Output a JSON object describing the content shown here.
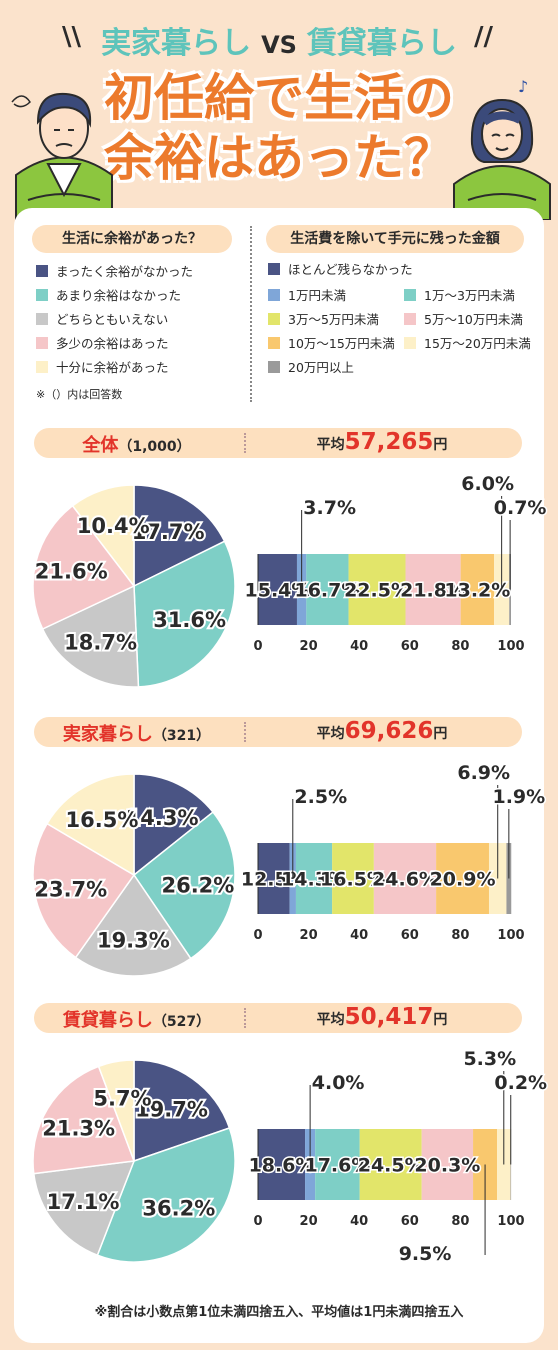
{
  "header": {
    "left_title": "実家暮らし",
    "vs": "VS",
    "right_title": "賃貸暮らし",
    "main_title_1": "初任給で生活の",
    "main_title_2": "余裕はあった？"
  },
  "legend_left": {
    "heading": "生活に余裕があった？",
    "items": [
      "まったく余裕がなかった",
      "あまり余裕はなかった",
      "どちらともいえない",
      "多少の余裕はあった",
      "十分に余裕があった"
    ],
    "note": "※（）内は回答数"
  },
  "legend_right": {
    "heading": "生活費を除いて手元に残った金額",
    "items": [
      "ほとんど残らなかった",
      "1万円未満",
      "1万〜3万円未満",
      "3万〜5万円未満",
      "5万〜10万円未満",
      "10万〜15万円未満",
      "15万〜20万円未満",
      "20万円以上"
    ]
  },
  "colors": {
    "pie": [
      "#4a5484",
      "#7ecfc6",
      "#c8c8c8",
      "#f5c6c8",
      "#fdf0c8"
    ],
    "bar": [
      "#4a5484",
      "#7fa6d8",
      "#7ecfc6",
      "#e2e56a",
      "#f5c6c8",
      "#f9c86e",
      "#fdf0c8",
      "#9a9a9a"
    ]
  },
  "chart_data": [
    {
      "type": "pie",
      "section": "全体",
      "count": "（1,000）",
      "average_label": "平均",
      "average": "57,265",
      "unit": "円",
      "values": [
        17.7,
        31.6,
        18.7,
        21.6,
        10.4
      ],
      "labels": [
        "17.7%",
        "31.6%",
        "18.7%",
        "21.6%",
        "10.4%"
      ],
      "bar": {
        "values": [
          15.4,
          3.7,
          16.7,
          22.5,
          21.8,
          13.2,
          6.0,
          0.7
        ],
        "labels": [
          "15.4%",
          "3.7%",
          "16.7%",
          "22.5%",
          "21.8%",
          "13.2%",
          "6.0%",
          "0.7%"
        ],
        "xticks": [
          "0",
          "20",
          "40",
          "60",
          "80",
          "100"
        ],
        "xlim": [
          0,
          100
        ]
      }
    },
    {
      "type": "pie",
      "section": "実家暮らし",
      "count": "（321）",
      "average_label": "平均",
      "average": "69,626",
      "unit": "円",
      "values": [
        14.3,
        26.2,
        19.3,
        23.7,
        16.5
      ],
      "labels": [
        "14.3%",
        "26.2%",
        "19.3%",
        "23.7%",
        "16.5%"
      ],
      "bar": {
        "values": [
          12.5,
          2.5,
          14.3,
          16.5,
          24.6,
          20.9,
          6.9,
          1.9
        ],
        "labels": [
          "12.5%",
          "2.5%",
          "14.3%",
          "16.5%",
          "24.6%",
          "20.9%",
          "6.9%",
          "1.9%"
        ],
        "xticks": [
          "0",
          "20",
          "40",
          "60",
          "80",
          "100"
        ],
        "xlim": [
          0,
          100
        ]
      }
    },
    {
      "type": "pie",
      "section": "賃貸暮らし",
      "count": "（527）",
      "average_label": "平均",
      "average": "50,417",
      "unit": "円",
      "values": [
        19.7,
        36.2,
        17.1,
        21.3,
        5.7
      ],
      "labels": [
        "19.7%",
        "36.2%",
        "17.1%",
        "21.3%",
        "5.7%"
      ],
      "bar": {
        "values": [
          18.6,
          4.0,
          17.6,
          24.5,
          20.3,
          9.5,
          5.3,
          0.2
        ],
        "labels": [
          "18.6%",
          "4.0%",
          "17.6%",
          "24.5%",
          "20.3%",
          "9.5%",
          "5.3%",
          "0.2%"
        ],
        "xticks": [
          "0",
          "20",
          "40",
          "60",
          "80",
          "100"
        ],
        "xlim": [
          0,
          100
        ]
      }
    }
  ],
  "footnote": "※割合は小数点第1位未満四捨五入、平均値は1円未満四捨五入"
}
